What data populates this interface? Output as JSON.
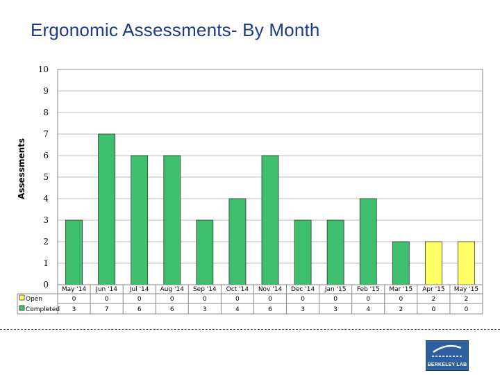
{
  "title": "Ergonomic Assessments- By Month",
  "chart_data": {
    "type": "bar",
    "stacked": true,
    "title": "Ergonomic Assessments- By Month",
    "ylabel": "Assessments",
    "xlabel": "",
    "ylim": [
      0,
      10
    ],
    "yticks": [
      0,
      1,
      2,
      3,
      4,
      5,
      6,
      7,
      8,
      9,
      10
    ],
    "grid": true,
    "categories": [
      "May '14",
      "Jun '14",
      "Jul '14",
      "Aug '14",
      "Sep '14",
      "Oct '14",
      "Nov '14",
      "Dec '14",
      "Jan '15",
      "Feb '15",
      "Mar '15",
      "Apr '15",
      "May '15"
    ],
    "series": [
      {
        "name": "Open",
        "color": "#ffff66",
        "values": [
          0,
          0,
          0,
          0,
          0,
          0,
          0,
          0,
          0,
          0,
          0,
          2,
          2
        ]
      },
      {
        "name": "Completed",
        "color": "#3dbf6e",
        "values": [
          3,
          7,
          6,
          6,
          3,
          4,
          6,
          3,
          3,
          4,
          2,
          0,
          0
        ]
      }
    ]
  },
  "logo": {
    "text": "BERKELEY LAB"
  }
}
